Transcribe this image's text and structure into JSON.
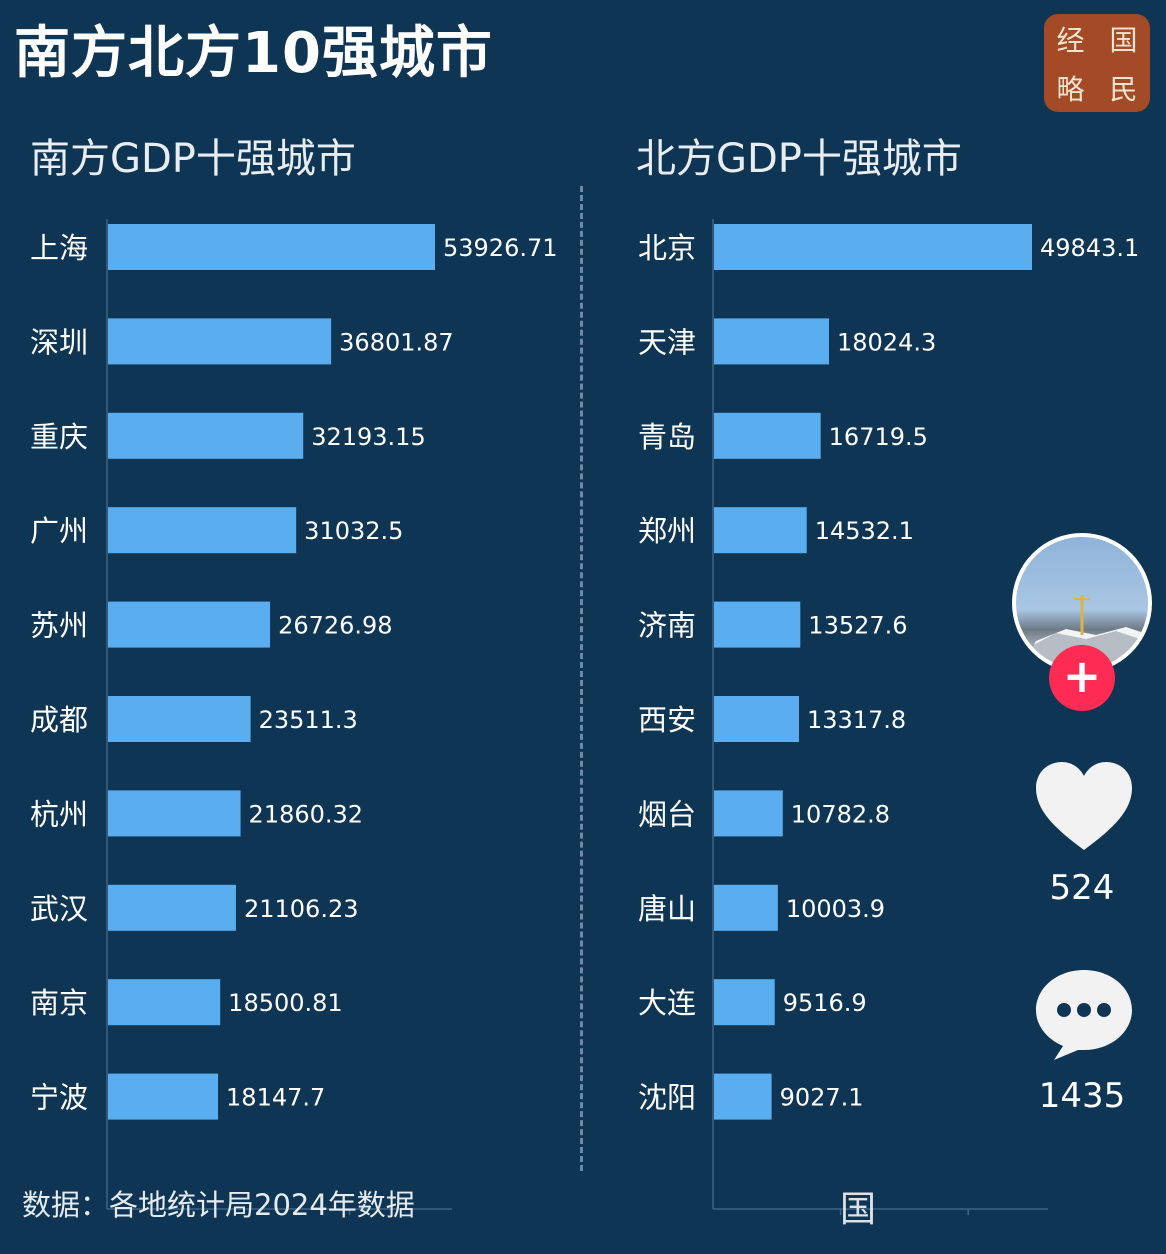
{
  "title": "南方北方10强城市",
  "logo": {
    "chars": [
      "经",
      "国",
      "略",
      "民"
    ]
  },
  "footer": "数据：各地统计局2024年数据",
  "social": {
    "likes": "524",
    "comments": "1435",
    "follow_symbol": "+"
  },
  "watermark_bar_text": "国",
  "colors": {
    "background": "#0f3554",
    "bar": "#5aaef0",
    "follow": "#fe2c55",
    "logo": "#a34a26"
  },
  "chart_data": [
    {
      "type": "bar",
      "orientation": "horizontal",
      "title": "南方GDP十强城市",
      "categories": [
        "上海",
        "深圳",
        "重庆",
        "广州",
        "苏州",
        "成都",
        "杭州",
        "武汉",
        "南京",
        "宁波"
      ],
      "values": [
        53926.71,
        36801.87,
        32193.15,
        31032.5,
        26726.98,
        23511.3,
        21860.32,
        21106.23,
        18500.81,
        18147.7
      ],
      "value_labels": [
        "53926.71",
        "36801.87",
        "32193.15",
        "31032.5",
        "26726.98",
        "23511.3",
        "21860.32",
        "21106.23",
        "18500.81",
        "18147.7"
      ],
      "xlim": [
        0,
        60000
      ],
      "grid": false
    },
    {
      "type": "bar",
      "orientation": "horizontal",
      "title": "北方GDP十强城市",
      "categories": [
        "北京",
        "天津",
        "青岛",
        "郑州",
        "济南",
        "西安",
        "烟台",
        "唐山",
        "大连",
        "沈阳"
      ],
      "values": [
        49843.1,
        18024.3,
        16719.5,
        14532.1,
        13527.6,
        13317.8,
        10782.8,
        10003.9,
        9516.9,
        9027.1
      ],
      "value_labels": [
        "49843.1",
        "18024.3",
        "16719.5",
        "14532.1",
        "13527.6",
        "13317.8",
        "10782.8",
        "10003.9",
        "9516.9",
        "9027.1"
      ],
      "xlim": [
        0,
        60000
      ],
      "grid": false
    }
  ]
}
